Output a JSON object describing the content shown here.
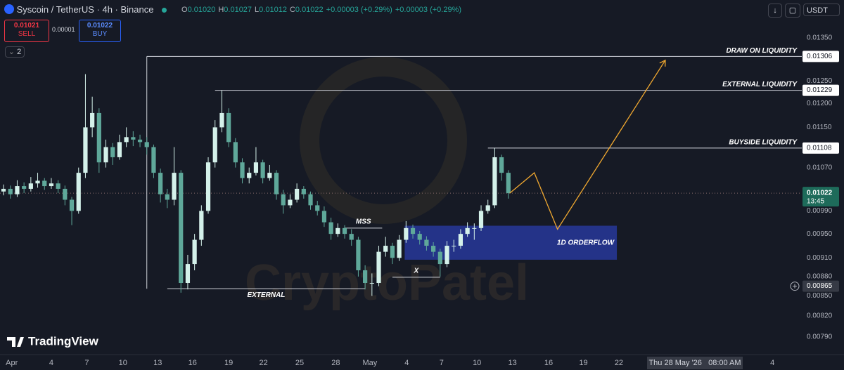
{
  "header": {
    "symbol": "Syscoin / TetherUS · 4h · Binance",
    "ohlc": [
      {
        "key": "O",
        "value": "0.01020"
      },
      {
        "key": "H",
        "value": "0.01027"
      },
      {
        "key": "L",
        "value": "0.01012"
      },
      {
        "key": "C",
        "value": "0.01022"
      }
    ],
    "change": "+0.00003 (+0.29%)",
    "change_2": "+0.00003 (+0.29%)",
    "sell": {
      "price": "0.01021",
      "label": "SELL"
    },
    "spread": "0.00001",
    "buy": {
      "price": "0.01022",
      "label": "BUY"
    },
    "indicators": "2",
    "currency": "USDT"
  },
  "watermark": "CryptoPatel",
  "brand": "TradingView",
  "crosshair_time": "Thu 28 May '26   08:00 AM",
  "chart_data": {
    "type": "candlestick",
    "log_scale": true,
    "grid": false,
    "up_color": "#d4f1ea",
    "down_color": "#5fa89a",
    "ylim": [
      0.0077,
      0.01445
    ],
    "xlim": [
      -0.52,
      117.01
    ],
    "yticks": [
      {
        "value": 0.0135,
        "label": "0.01350"
      },
      {
        "value": 0.0125,
        "label": "0.01250"
      },
      {
        "value": 0.012,
        "label": "0.01200"
      },
      {
        "value": 0.0115,
        "label": "0.01150"
      },
      {
        "value": 0.0107,
        "label": "0.01070"
      },
      {
        "value": 0.0099,
        "label": "0.00990"
      },
      {
        "value": 0.0095,
        "label": "0.00950"
      },
      {
        "value": 0.0091,
        "label": "0.00910"
      },
      {
        "value": 0.0088,
        "label": "0.00880"
      },
      {
        "value": 0.0085,
        "label": "0.00850"
      },
      {
        "value": 0.0082,
        "label": "0.00820"
      },
      {
        "value": 0.0079,
        "label": "0.00790"
      }
    ],
    "xticks": [
      {
        "value": 1.2,
        "label": "Apr"
      },
      {
        "value": 7,
        "label": "4"
      },
      {
        "value": 12.2,
        "label": "7"
      },
      {
        "value": 17.5,
        "label": "10"
      },
      {
        "value": 22.6,
        "label": "13"
      },
      {
        "value": 27.7,
        "label": "16"
      },
      {
        "value": 33,
        "label": "19"
      },
      {
        "value": 38.1,
        "label": "22"
      },
      {
        "value": 43.4,
        "label": "25"
      },
      {
        "value": 48.7,
        "label": "28"
      },
      {
        "value": 53.7,
        "label": "May"
      },
      {
        "value": 59.1,
        "label": "4"
      },
      {
        "value": 64.2,
        "label": "7"
      },
      {
        "value": 69.4,
        "label": "10"
      },
      {
        "value": 74.6,
        "label": "13"
      },
      {
        "value": 79.9,
        "label": "16"
      },
      {
        "value": 85,
        "label": "19"
      },
      {
        "value": 90.2,
        "label": "22"
      },
      {
        "value": 112.7,
        "label": "4"
      }
    ],
    "candles": [
      [
        0.01025,
        0.01038,
        0.01018,
        0.0103
      ],
      [
        0.0103,
        0.01036,
        0.01012,
        0.0102
      ],
      [
        0.0102,
        0.01046,
        0.01015,
        0.01035
      ],
      [
        0.01035,
        0.01042,
        0.01022,
        0.0103
      ],
      [
        0.0103,
        0.01052,
        0.01025,
        0.0104
      ],
      [
        0.0104,
        0.0106,
        0.01032,
        0.01045
      ],
      [
        0.01045,
        0.0105,
        0.01028,
        0.01035
      ],
      [
        0.01035,
        0.0105,
        0.0103,
        0.0104
      ],
      [
        0.0104,
        0.01046,
        0.01022,
        0.0103
      ],
      [
        0.0103,
        0.01036,
        0.01,
        0.0101
      ],
      [
        0.0101,
        0.01015,
        0.00965,
        0.0099
      ],
      [
        0.0099,
        0.0107,
        0.00985,
        0.0106
      ],
      [
        0.0106,
        0.01265,
        0.0105,
        0.0115
      ],
      [
        0.0115,
        0.01215,
        0.0113,
        0.0118
      ],
      [
        0.0118,
        0.0119,
        0.0106,
        0.0108
      ],
      [
        0.0108,
        0.01125,
        0.0107,
        0.0111
      ],
      [
        0.0111,
        0.01118,
        0.01075,
        0.0109
      ],
      [
        0.0109,
        0.01135,
        0.01085,
        0.0112
      ],
      [
        0.0112,
        0.0115,
        0.0111,
        0.0113
      ],
      [
        0.0113,
        0.01142,
        0.01112,
        0.01125
      ],
      [
        0.01125,
        0.01135,
        0.0111,
        0.0112
      ],
      [
        0.0112,
        0.0113,
        0.01095,
        0.0111
      ],
      [
        0.0111,
        0.01115,
        0.0105,
        0.0106
      ],
      [
        0.0106,
        0.01068,
        0.01005,
        0.0102
      ],
      [
        0.0102,
        0.0103,
        0.00995,
        0.0101
      ],
      [
        0.0101,
        0.0111,
        0.01,
        0.0106
      ],
      [
        0.0106,
        0.01065,
        0.00855,
        0.0087
      ],
      [
        0.0087,
        0.00915,
        0.0086,
        0.009
      ],
      [
        0.009,
        0.0095,
        0.0089,
        0.0094
      ],
      [
        0.0094,
        0.01,
        0.0093,
        0.0099
      ],
      [
        0.0099,
        0.0109,
        0.00985,
        0.0108
      ],
      [
        0.0108,
        0.01165,
        0.0107,
        0.0115
      ],
      [
        0.0115,
        0.01229,
        0.0114,
        0.0118
      ],
      [
        0.0118,
        0.0119,
        0.0111,
        0.0112
      ],
      [
        0.0112,
        0.01128,
        0.0107,
        0.0108
      ],
      [
        0.0108,
        0.01088,
        0.0104,
        0.0105
      ],
      [
        0.0105,
        0.0107,
        0.0104,
        0.0106
      ],
      [
        0.0106,
        0.0111,
        0.01055,
        0.0108
      ],
      [
        0.0108,
        0.01085,
        0.0104,
        0.0105
      ],
      [
        0.0105,
        0.01075,
        0.01045,
        0.0106
      ],
      [
        0.0106,
        0.01065,
        0.0101,
        0.0102
      ],
      [
        0.0102,
        0.01028,
        0.00985,
        0.01
      ],
      [
        0.01,
        0.0102,
        0.00995,
        0.0101
      ],
      [
        0.0101,
        0.0104,
        0.01005,
        0.0103
      ],
      [
        0.0103,
        0.01035,
        0.01012,
        0.0102
      ],
      [
        0.0102,
        0.01025,
        0.00992,
        0.01
      ],
      [
        0.01,
        0.01008,
        0.00982,
        0.0099
      ],
      [
        0.0099,
        0.00998,
        0.00962,
        0.0097
      ],
      [
        0.0097,
        0.00978,
        0.0094,
        0.0095
      ],
      [
        0.0095,
        0.00968,
        0.00945,
        0.0096
      ],
      [
        0.0096,
        0.00965,
        0.00942,
        0.0095
      ],
      [
        0.0095,
        0.00958,
        0.0093,
        0.0094
      ],
      [
        0.0094,
        0.00945,
        0.0088,
        0.0089
      ],
      [
        0.0089,
        0.00898,
        0.0086,
        0.0087
      ],
      [
        0.0087,
        0.00885,
        0.0085,
        0.0087
      ],
      [
        0.0087,
        0.0093,
        0.00865,
        0.0092
      ],
      [
        0.0092,
        0.00945,
        0.00912,
        0.0093
      ],
      [
        0.0093,
        0.00935,
        0.009,
        0.0091
      ],
      [
        0.0091,
        0.00948,
        0.00905,
        0.0094
      ],
      [
        0.0094,
        0.00972,
        0.00935,
        0.0096
      ],
      [
        0.0096,
        0.00966,
        0.00942,
        0.0095
      ],
      [
        0.0095,
        0.00955,
        0.00932,
        0.0094
      ],
      [
        0.0094,
        0.00946,
        0.00922,
        0.0093
      ],
      [
        0.0093,
        0.00936,
        0.00912,
        0.0092
      ],
      [
        0.0092,
        0.00925,
        0.0088,
        0.009
      ],
      [
        0.009,
        0.00938,
        0.00895,
        0.0093
      ],
      [
        0.0093,
        0.0094,
        0.0092,
        0.0093
      ],
      [
        0.0093,
        0.00958,
        0.00925,
        0.0095
      ],
      [
        0.0095,
        0.0097,
        0.00945,
        0.0096
      ],
      [
        0.0096,
        0.00968,
        0.0094,
        0.0096
      ],
      [
        0.0096,
        0.01,
        0.00955,
        0.0099
      ],
      [
        0.0099,
        0.0101,
        0.00985,
        0.01
      ],
      [
        0.01,
        0.01108,
        0.00995,
        0.0109
      ],
      [
        0.0109,
        0.01095,
        0.01045,
        0.0106
      ],
      [
        0.0106,
        0.01065,
        0.01012,
        0.01022
      ]
    ],
    "levels": [
      {
        "name": "DRAW ON LIQUIDITY",
        "price": {
          "value": 0.01306,
          "label": "0.01306"
        },
        "start": 21
      },
      {
        "name": "EXTERNAL LIQUIDITY",
        "price": {
          "value": 0.01229,
          "label": "0.01229"
        },
        "start": 31
      },
      {
        "name": "BUYSIDE LIQUIDITY",
        "price": {
          "value": 0.01108,
          "label": "0.01108"
        },
        "start": 71
      }
    ],
    "annotations": [
      {
        "label": "EXTERNAL",
        "price": 0.00861,
        "start": 24,
        "end": 53
      },
      {
        "label": "MSS",
        "price": 0.0096,
        "start": 50,
        "end": 55.5
      },
      {
        "label": "X",
        "price": 0.00879,
        "start": 57,
        "end": 64
      }
    ],
    "orderflow": {
      "label": "1D ORDERFLOW",
      "start": 58.8,
      "end": 89.9,
      "top": 0.00964,
      "bottom": 0.00907
    },
    "projection": {
      "x": [
        74.2,
        77.8,
        81.2,
        97
      ],
      "values": [
        0.01022,
        0.0106,
        0.00958,
        0.01297
      ]
    },
    "last_price": {
      "value": 0.01022,
      "label": "0.01022",
      "countdown": "13:45"
    },
    "crosshair_price": {
      "value": 0.00865,
      "label": "0.00865"
    }
  }
}
